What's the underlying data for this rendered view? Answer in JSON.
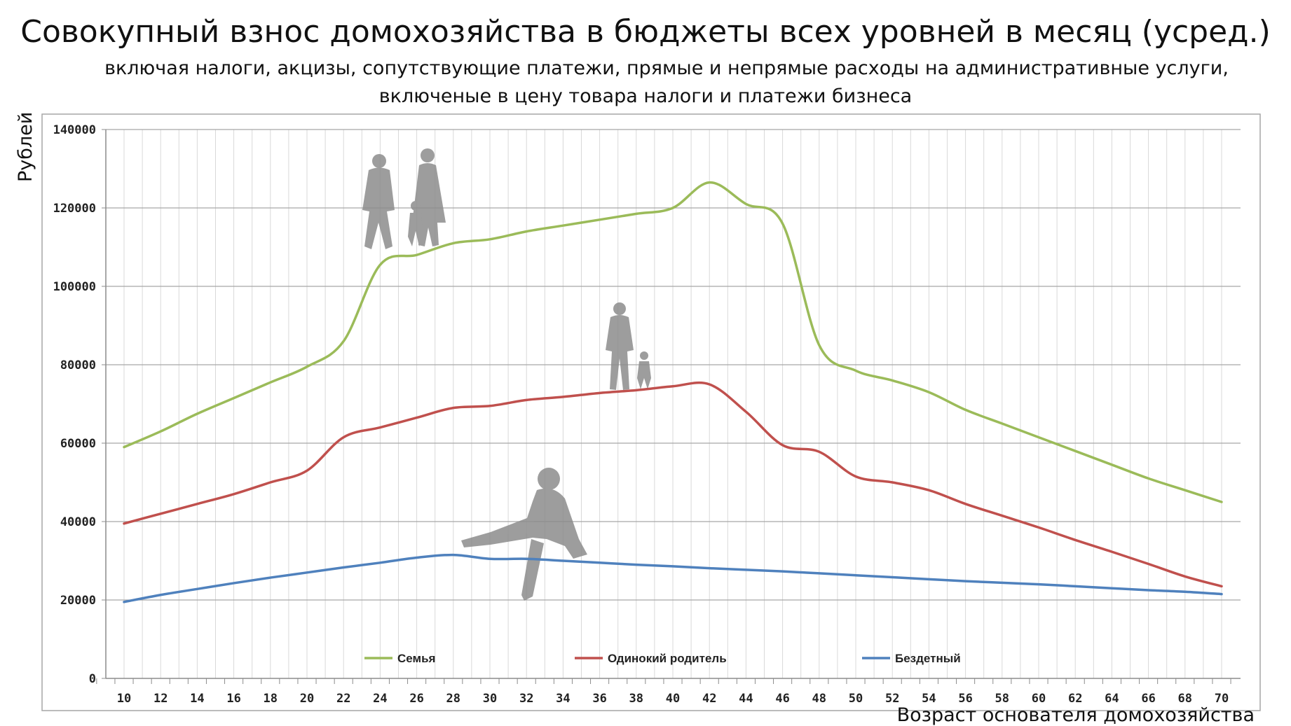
{
  "title": "Совокупный взнос домохозяйства в бюджеты всех уровней в месяц (усред.)",
  "subtitle_line1": "включая налоги, акцизы, сопутствующие платежи, прямые и непрямые расходы на административные услуги,",
  "subtitle_line2": "включеные в цену товара налоги и платежи бизнеса",
  "chart_data": {
    "type": "line",
    "ylabel": "Рублей",
    "xlabel": "Возраст основателя домохозяйства",
    "xlim": [
      10,
      70
    ],
    "ylim": [
      0,
      140000
    ],
    "x_ticks": [
      10,
      12,
      14,
      16,
      18,
      20,
      22,
      24,
      26,
      28,
      30,
      32,
      34,
      36,
      38,
      40,
      42,
      44,
      46,
      48,
      50,
      52,
      54,
      56,
      58,
      60,
      62,
      64,
      66,
      68,
      70
    ],
    "y_ticks": [
      0,
      20000,
      40000,
      60000,
      80000,
      100000,
      120000,
      140000
    ],
    "grid": true,
    "legend_position": "bottom",
    "x": [
      10,
      12,
      14,
      16,
      18,
      20,
      22,
      24,
      26,
      28,
      30,
      32,
      34,
      36,
      38,
      40,
      42,
      44,
      46,
      48,
      50,
      52,
      54,
      56,
      58,
      60,
      62,
      64,
      66,
      68,
      70
    ],
    "series": [
      {
        "name": "Семья",
        "color": "#9bbb59",
        "values": [
          59000,
          63000,
          67500,
          71500,
          75500,
          79500,
          86000,
          105500,
          108000,
          111000,
          112000,
          114000,
          115500,
          117000,
          118500,
          120000,
          126500,
          121000,
          116000,
          85000,
          78500,
          76000,
          73000,
          68500,
          65000,
          61500,
          58000,
          54500,
          51000,
          48000,
          45000
        ]
      },
      {
        "name": "Одинокий родитель",
        "color": "#c0504d",
        "values": [
          39500,
          42000,
          44500,
          47000,
          50000,
          53000,
          61500,
          64000,
          66500,
          69000,
          69500,
          71000,
          71800,
          72800,
          73500,
          74500,
          75000,
          68000,
          59500,
          57800,
          51500,
          50000,
          48000,
          44500,
          41500,
          38500,
          35300,
          32300,
          29200,
          26000,
          23500
        ]
      },
      {
        "name": "Бездетный",
        "color": "#4f81bd",
        "values": [
          19500,
          21300,
          22800,
          24300,
          25700,
          27000,
          28300,
          29500,
          30800,
          31500,
          30500,
          30500,
          30000,
          29500,
          29000,
          28600,
          28100,
          27700,
          27300,
          26800,
          26300,
          25800,
          25300,
          24800,
          24400,
          24000,
          23500,
          23000,
          22500,
          22100,
          21500
        ]
      }
    ]
  }
}
